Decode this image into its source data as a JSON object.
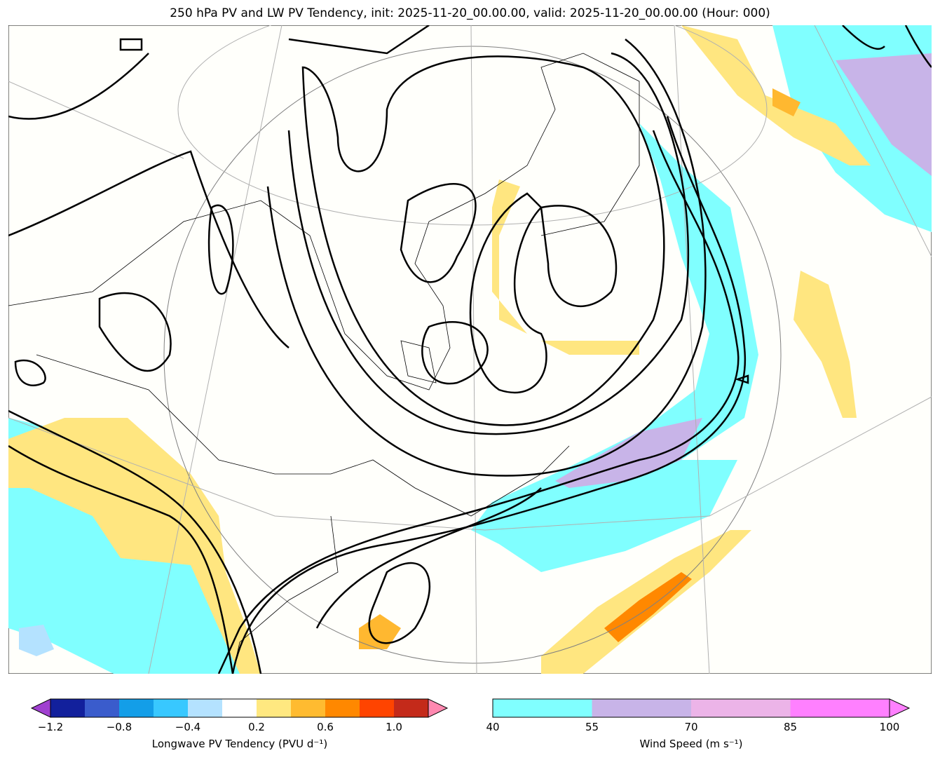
{
  "title": "250 hPa PV and LW PV Tendency, init: 2025-11-20_00.00.00, valid: 2025-11-20_00.00.00 (Hour: 000)",
  "colors": {
    "background": "#fffffb",
    "pv_contour": "#000000",
    "jet_40_55": "#80ffff",
    "jet_55_70": "#c8b4e8",
    "pos_tend": "#ffe680",
    "pos_tend_2": "#ffb830"
  },
  "pv_colorbar": {
    "label": "Longwave PV Tendency (PVU d⁻¹)",
    "bounds": [
      -1.2,
      -1.0,
      -0.8,
      -0.6,
      -0.4,
      -0.2,
      0.2,
      0.4,
      0.6,
      0.8,
      1.0,
      1.2
    ],
    "colors": [
      "#12209c",
      "#3a5ccc",
      "#139ee8",
      "#38c8ff",
      "#b4e2ff",
      "#ffffff",
      "#ffe880",
      "#ffbb30",
      "#ff8800",
      "#ff4400",
      "#c42a1a"
    ],
    "extend_low": "#a040d0",
    "extend_high": "#ff88b0",
    "ticks": [
      "−1.2",
      "−0.8",
      "−0.4",
      "0.2",
      "0.6",
      "1.0"
    ]
  },
  "wind_colorbar": {
    "label": "Wind Speed (m s⁻¹)",
    "colors": [
      "#80ffff",
      "#c8b4e8",
      "#ecb4e8",
      "#ff80ff"
    ],
    "extend_high": "#ff80ff",
    "ticks": [
      "40",
      "55",
      "70",
      "85",
      "100"
    ]
  }
}
